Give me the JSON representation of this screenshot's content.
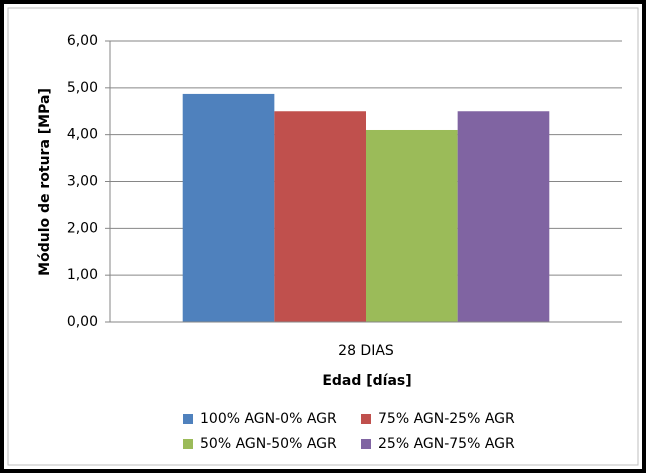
{
  "chart_data": {
    "type": "bar",
    "y_label": "Módulo de rotura  [MPa]",
    "x_label": "Edad [días]",
    "categories": [
      "28 DIAS"
    ],
    "series": [
      {
        "name": "100% AGN-0% AGR",
        "color": "#4f81bd",
        "values": [
          4.87
        ]
      },
      {
        "name": "75% AGN-25% AGR",
        "color": "#c0504d",
        "values": [
          4.5
        ]
      },
      {
        "name": "50% AGN-50% AGR",
        "color": "#9bbb59",
        "values": [
          4.1
        ]
      },
      {
        "name": "25% AGN-75% AGR",
        "color": "#8064a2",
        "values": [
          4.5
        ]
      }
    ],
    "ylim": [
      0,
      6
    ],
    "yticks": [
      {
        "value": 0,
        "label": "0,00"
      },
      {
        "value": 1,
        "label": "1,00"
      },
      {
        "value": 2,
        "label": "2,00"
      },
      {
        "value": 3,
        "label": "3,00"
      },
      {
        "value": 4,
        "label": "4,00"
      },
      {
        "value": 5,
        "label": "5,00"
      },
      {
        "value": 6,
        "label": "6,00"
      }
    ],
    "grid": true,
    "legend": "bottom"
  }
}
